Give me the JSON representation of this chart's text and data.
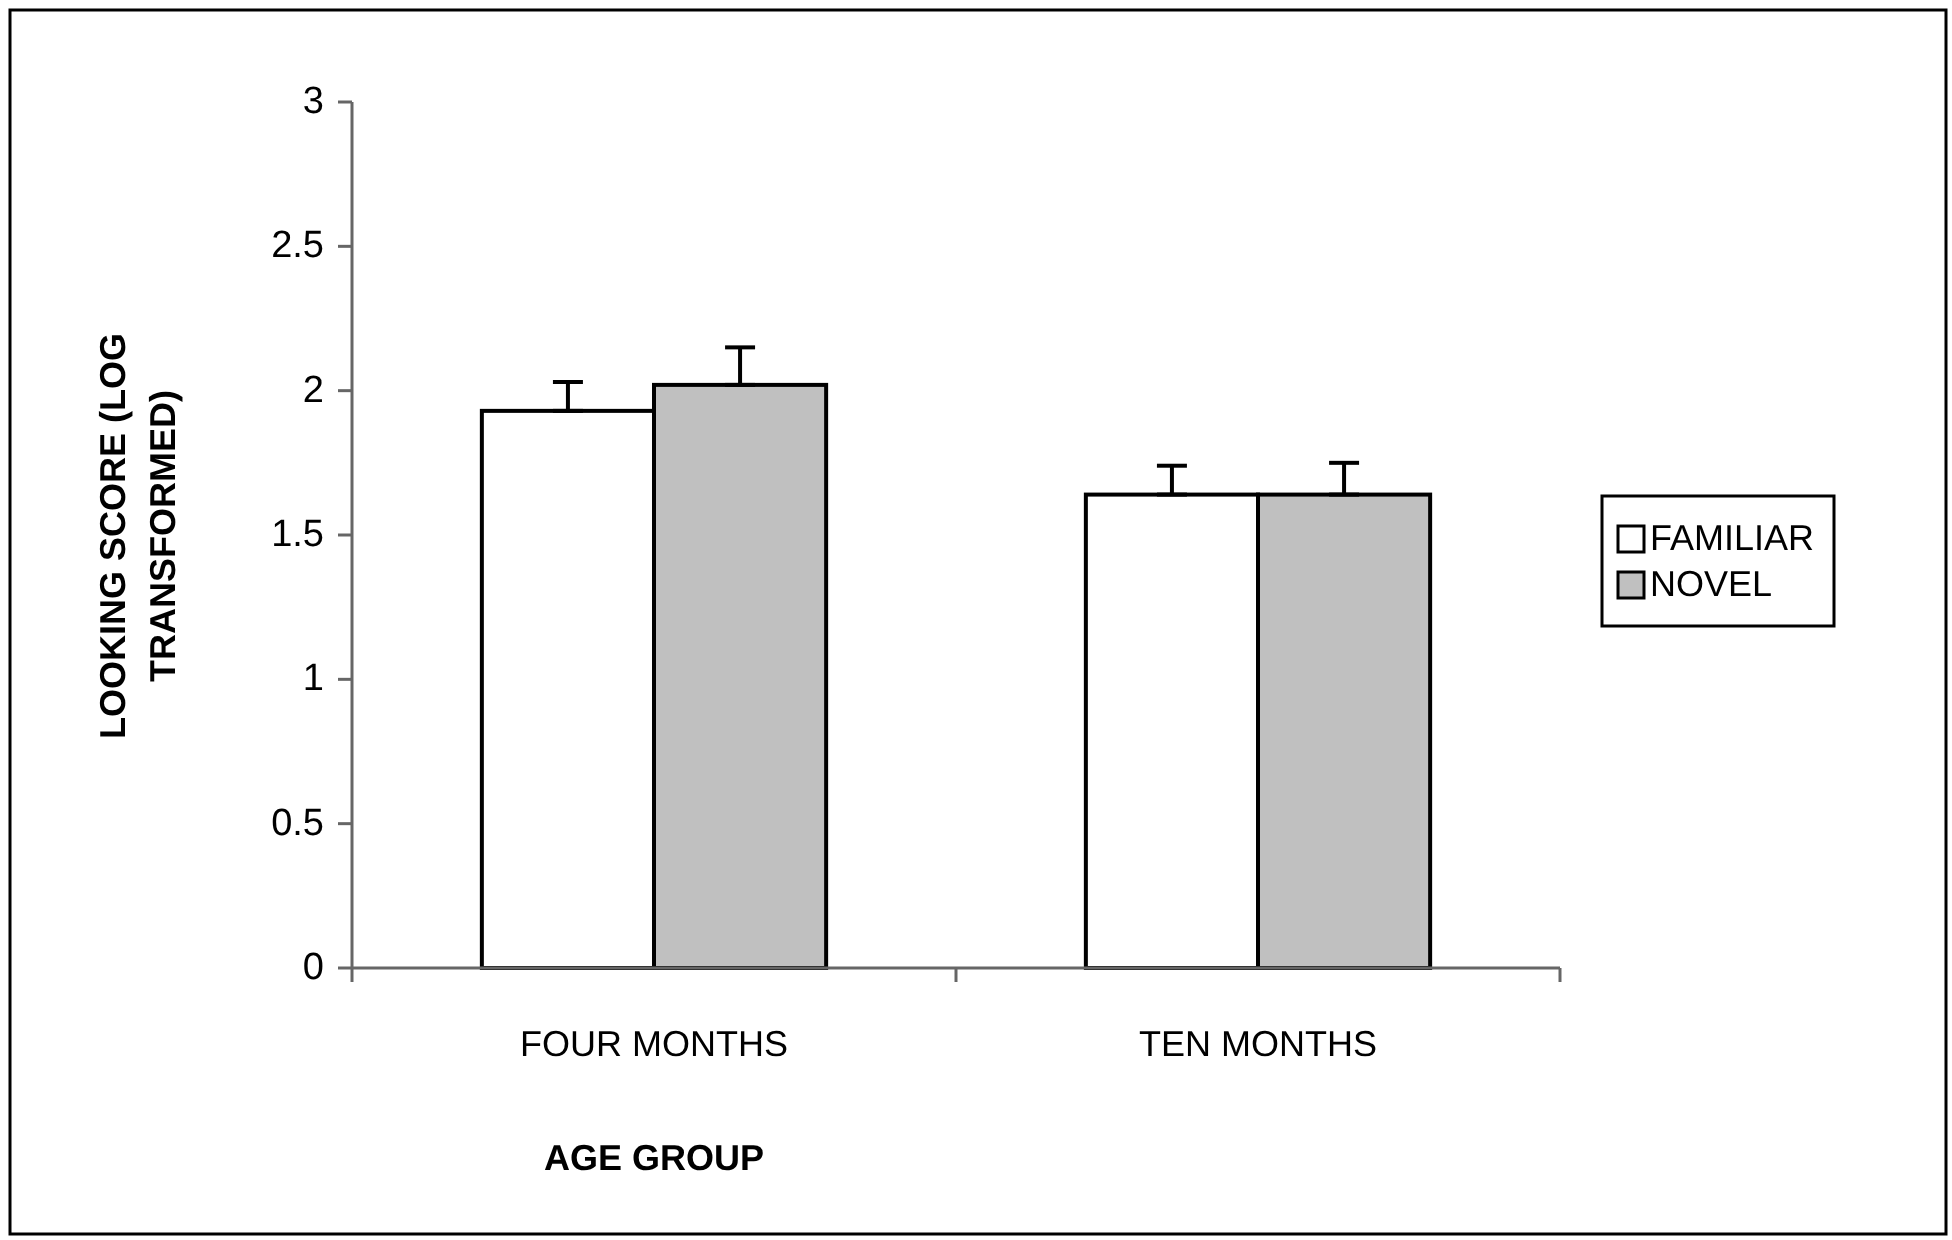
{
  "chart_data": {
    "type": "bar",
    "xlabel": "AGE GROUP",
    "ylabel": "LOOKING SCORE (LOG TRANSFORMED)",
    "categories": [
      "FOUR MONTHS",
      "TEN MONTHS"
    ],
    "series": [
      {
        "name": "FAMILIAR",
        "color": "#ffffff",
        "values": [
          1.93,
          1.64
        ],
        "errors": [
          [
            1.93,
            2.03
          ],
          [
            1.64,
            1.74
          ]
        ]
      },
      {
        "name": "NOVEL",
        "color": "#c0c0c0",
        "values": [
          2.02,
          1.64
        ],
        "errors": [
          [
            2.02,
            2.15
          ],
          [
            1.64,
            1.75
          ]
        ]
      }
    ],
    "ylim": [
      0,
      3
    ],
    "yticks": [
      0,
      0.5,
      1,
      1.5,
      2,
      2.5,
      3
    ],
    "legend": "right"
  }
}
